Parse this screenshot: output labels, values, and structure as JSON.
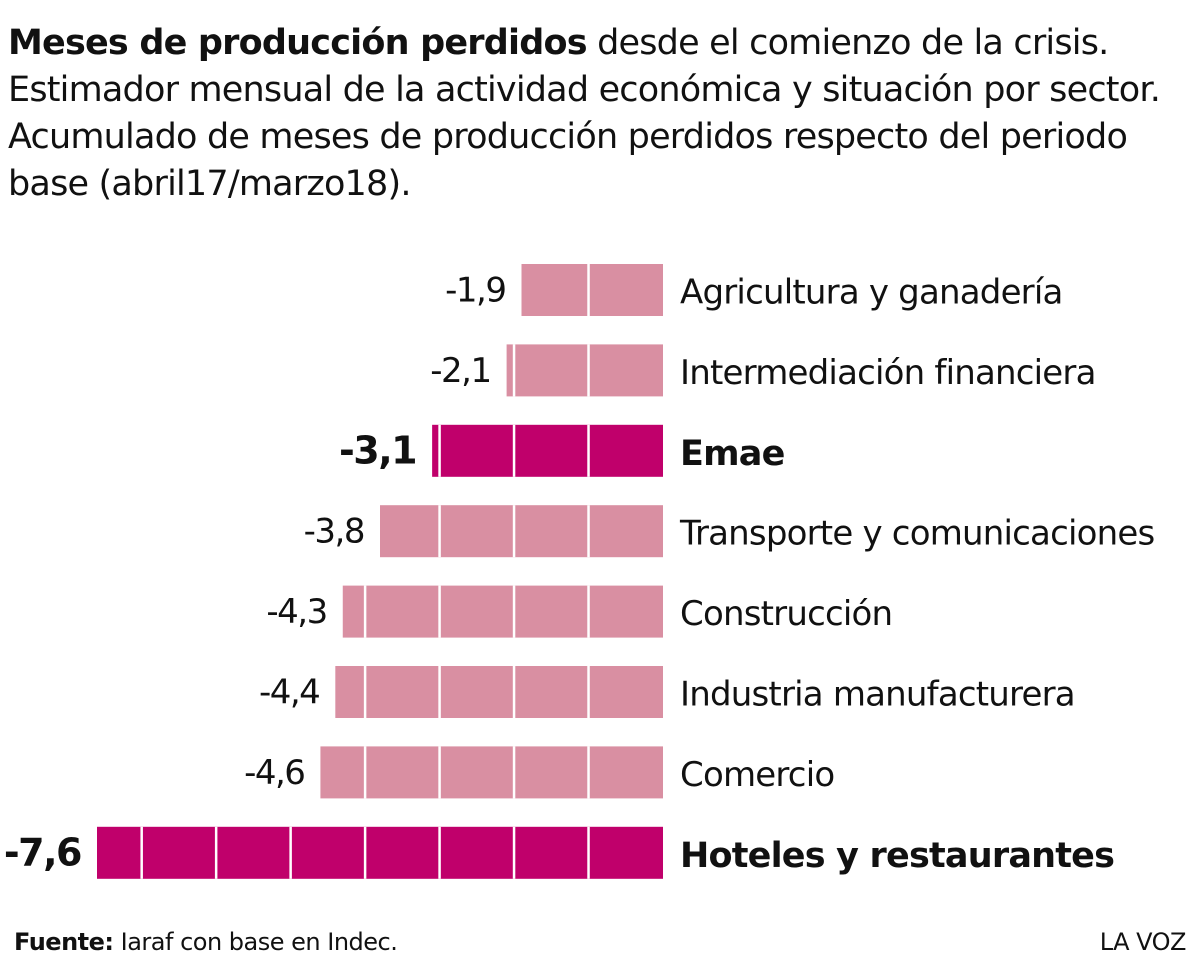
{
  "chart_data": {
    "type": "hbar",
    "title": "Meses de producción perdidos",
    "subtitle": "desde el comienzo de la crisis. Estimador mensual de la actividad económica y situación por sector. Acumulado de meses de producción perdidos respecto del periodo base (abril17/marzo18).",
    "categories": [
      "Agricultura y ganadería",
      "Intermediación financiera",
      "Emae",
      "Transporte y comunicaciones",
      "Construcción",
      "Industria manufacturera",
      "Comercio",
      "Hoteles y restaurantes"
    ],
    "values": [
      -1.9,
      -2.1,
      -3.1,
      -3.8,
      -4.3,
      -4.4,
      -4.6,
      -7.6
    ],
    "value_labels": [
      "-1,9",
      "-2,1",
      "-3,1",
      "-3,8",
      "-4,3",
      "-4,4",
      "-4,6",
      "-7,6"
    ],
    "colors": [
      "#d98fa2",
      "#d98fa2",
      "#c0006b",
      "#d98fa2",
      "#d98fa2",
      "#d98fa2",
      "#d98fa2",
      "#c0006b"
    ],
    "emphasis": [
      false,
      false,
      true,
      false,
      false,
      false,
      false,
      true
    ]
  },
  "footer": {
    "source_label": "Fuente:",
    "source": "Iaraf con base en Indec.",
    "brand": "LA VOZ"
  }
}
